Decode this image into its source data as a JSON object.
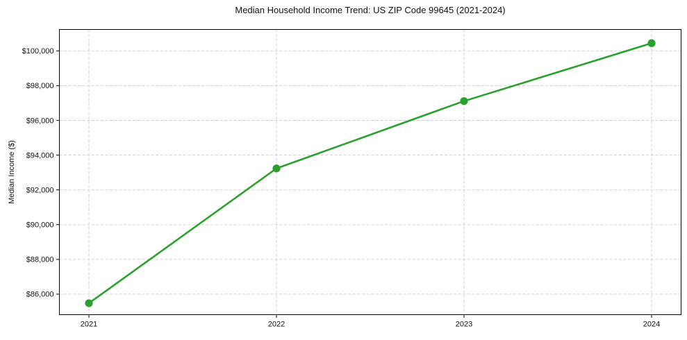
{
  "chart_data": {
    "type": "line",
    "title": "Median Household Income Trend: US ZIP Code 99645 (2021-2024)",
    "xlabel": "",
    "ylabel": "Median Income ($)",
    "categories": [
      "2021",
      "2022",
      "2023",
      "2024"
    ],
    "series": [
      {
        "name": "Median Household Income",
        "values": [
          85480,
          93235,
          97110,
          100440
        ]
      }
    ],
    "y_ticks": [
      {
        "value": 86000,
        "label": "$86,000"
      },
      {
        "value": 88000,
        "label": "$88,000"
      },
      {
        "value": 90000,
        "label": "$90,000"
      },
      {
        "value": 92000,
        "label": "$92,000"
      },
      {
        "value": 94000,
        "label": "$94,000"
      },
      {
        "value": 96000,
        "label": "$96,000"
      },
      {
        "value": 98000,
        "label": "$98,000"
      },
      {
        "value": 100000,
        "label": "$100,000"
      }
    ],
    "ylim": [
      84820,
      101230
    ],
    "grid": true,
    "grid_style": "dashed",
    "legend": "none",
    "line_color": "#2ca02c",
    "marker": "circle",
    "grid_color": "#cccccc",
    "axis_color": "#000000",
    "text_color": "#111111",
    "background_color": "#ffffff"
  }
}
